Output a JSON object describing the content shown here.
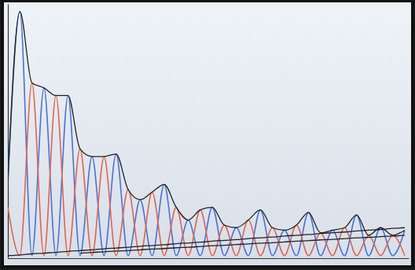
{
  "chart_data": {
    "type": "line",
    "x": [
      0,
      3,
      6,
      9,
      12,
      15,
      18,
      21,
      24,
      27,
      30,
      33,
      36,
      39,
      42,
      45,
      48,
      51,
      54,
      57,
      60,
      63,
      66,
      69,
      72,
      75,
      78,
      81,
      84,
      87,
      90,
      93,
      96,
      99
    ],
    "xlim": [
      0,
      100
    ],
    "ylim": [
      0,
      100
    ],
    "tick_labels": false,
    "series": [
      {
        "color": "#4a72d9",
        "values": [
          30,
          97,
          1,
          67,
          1,
          64,
          1,
          40,
          1,
          41,
          1,
          23,
          1,
          29,
          1,
          15,
          1,
          20,
          1,
          12,
          1,
          19,
          1,
          11,
          1,
          18,
          1,
          11,
          1,
          17,
          1,
          12,
          1,
          11
        ]
      },
      {
        "color": "#e0654f",
        "values": [
          20,
          1,
          69,
          1,
          64,
          1,
          43,
          1,
          40,
          1,
          27,
          1,
          26,
          1,
          20,
          1,
          19,
          1,
          13,
          1,
          15,
          1,
          12,
          1,
          13,
          1,
          10,
          1,
          12,
          1,
          9,
          1,
          9,
          1
        ]
      },
      {
        "color": "#222222",
        "values": [
          30,
          97,
          69,
          67,
          64,
          64,
          43,
          40,
          40,
          41,
          27,
          23,
          26,
          29,
          20,
          15,
          19,
          20,
          13,
          12,
          15,
          19,
          12,
          11,
          13,
          18,
          10,
          11,
          12,
          17,
          9,
          12,
          9,
          11
        ]
      },
      {
        "color": "#222222",
        "values": [
          1.0,
          1.3,
          1.7,
          2.0,
          2.3,
          2.7,
          3.0,
          3.3,
          3.7,
          4.0,
          4.3,
          4.7,
          5.0,
          5.3,
          5.7,
          6.0,
          6.3,
          6.7,
          7.0,
          7.3,
          7.7,
          8.0,
          8.3,
          8.7,
          9.0,
          9.3,
          9.7,
          10.0,
          10.3,
          10.7,
          11.0,
          11.3,
          11.7,
          12.0
        ]
      },
      {
        "color": "#222222",
        "values": [
          null,
          null,
          null,
          null,
          null,
          null,
          2.0,
          2.3,
          2.5,
          2.8,
          3.0,
          3.3,
          3.6,
          3.8,
          4.1,
          4.3,
          4.6,
          4.9,
          5.1,
          5.4,
          5.6,
          5.9,
          6.1,
          6.4,
          6.7,
          6.9,
          7.2,
          7.4,
          7.7,
          8.0,
          8.2,
          8.5,
          8.7,
          9.0
        ]
      }
    ]
  }
}
